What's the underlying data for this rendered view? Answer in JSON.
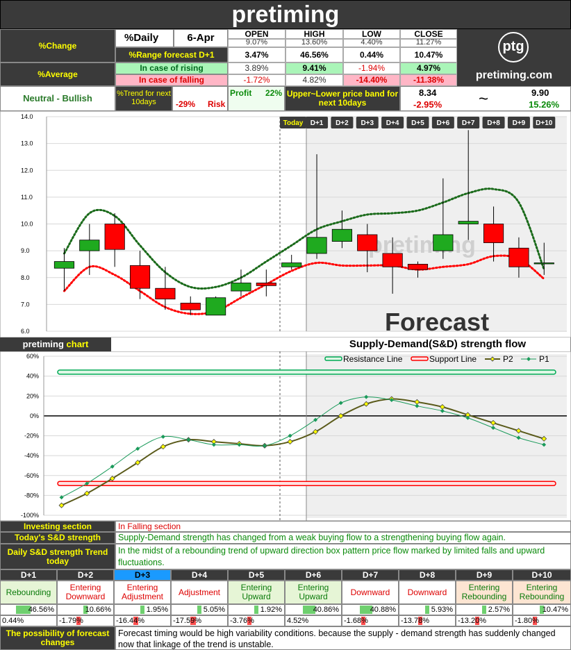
{
  "title": "pretiming",
  "header": {
    "pct_change_label": "%Change",
    "pct_daily_label": "%Daily",
    "date": "6-Apr",
    "cols": [
      "OPEN",
      "HIGH",
      "LOW",
      "CLOSE"
    ],
    "daily_values": [
      "9.07%",
      "13.60%",
      "4.40%",
      "11.27%"
    ],
    "range_label": "%Range forecast D+1",
    "range_values": [
      "3.47%",
      "46.56%",
      "0.44%",
      "10.47%"
    ],
    "pct_average_label": "%Average",
    "rising_label": "In case of rising",
    "rising_values": [
      "3.89%",
      "9.41%",
      "-1.94%",
      "4.97%"
    ],
    "falling_label": "In case of falling",
    "falling_values": [
      "-1.72%",
      "4.82%",
      "-14.40%",
      "-11.38%"
    ],
    "trend_status": "Neutral - Bullish",
    "trend_label": "%Trend for next 10days",
    "risk_value": "-29%",
    "risk_label": "Risk",
    "profit_label": "Profit",
    "profit_value": "22%",
    "band_label": "Upper~Lower price band for next 10days",
    "band_lower_price": "8.34",
    "band_lower_pct": "-2.95%",
    "band_tilde": "~",
    "band_upper_price": "9.90",
    "band_upper_pct": "15.26%",
    "logo_text": "ptg",
    "site": "pretiming.com"
  },
  "colors": {
    "up": "#1faa1f",
    "down": "#ff0000",
    "resistance_line": "#00aa55",
    "support_line": "#ff0000",
    "p1": "#1a9a5a",
    "p2": "#5a5a1a",
    "header_yellow": "#ffff00"
  },
  "chart_data": [
    {
      "type": "candlestick",
      "categories": [
        "",
        "",
        "",
        "",
        "",
        "",
        "",
        "",
        "",
        "Today",
        "D+1",
        "D+2",
        "D+3",
        "D+4",
        "D+5",
        "D+6",
        "D+7",
        "D+8",
        "D+9",
        "D+10"
      ],
      "candles": [
        {
          "open": 8.35,
          "close": 8.6,
          "high": 9.1,
          "low": 7.5
        },
        {
          "open": 9.0,
          "close": 9.4,
          "high": 10.0,
          "low": 8.1
        },
        {
          "open": 10.0,
          "close": 9.05,
          "high": 10.4,
          "low": 8.4
        },
        {
          "open": 8.45,
          "close": 7.6,
          "high": 9.0,
          "low": 7.2
        },
        {
          "open": 7.6,
          "close": 7.2,
          "high": 8.4,
          "low": 6.8
        },
        {
          "open": 7.05,
          "close": 6.8,
          "high": 7.3,
          "low": 6.6
        },
        {
          "open": 6.6,
          "close": 7.25,
          "high": 7.3,
          "low": 6.6
        },
        {
          "open": 7.5,
          "close": 7.8,
          "high": 8.3,
          "low": 7.3
        },
        {
          "open": 7.8,
          "close": 7.7,
          "high": 8.3,
          "low": 7.3
        },
        {
          "open": 8.4,
          "close": 8.55,
          "high": 8.85,
          "low": 8.3
        },
        {
          "open": 8.9,
          "close": 9.5,
          "high": 12.6,
          "low": 8.7
        },
        {
          "open": 9.35,
          "close": 9.8,
          "high": 10.5,
          "low": 9.1
        },
        {
          "open": 9.6,
          "close": 9.0,
          "high": 10.0,
          "low": 8.2
        },
        {
          "open": 8.9,
          "close": 8.4,
          "high": 9.5,
          "low": 7.4
        },
        {
          "open": 8.5,
          "close": 8.3,
          "high": 8.6,
          "low": 8.0
        },
        {
          "open": 9.0,
          "close": 9.6,
          "high": 11.7,
          "low": 8.7
        },
        {
          "open": 10.0,
          "close": 10.1,
          "high": 13.5,
          "low": 9.4
        },
        {
          "open": 10.0,
          "close": 9.3,
          "high": 10.65,
          "low": 8.6
        },
        {
          "open": 9.1,
          "close": 8.4,
          "high": 9.5,
          "low": 8.0
        },
        {
          "open": 8.55,
          "close": 8.55,
          "high": 9.3,
          "low": 8.1
        }
      ],
      "upper_band": [
        8.9,
        10.4,
        10.3,
        9.2,
        8.2,
        7.65,
        7.65,
        8.0,
        8.6,
        9.2,
        9.8,
        10.1,
        10.35,
        10.4,
        10.5,
        10.8,
        11.15,
        11.3,
        10.8,
        8.3
      ],
      "lower_band": [
        7.5,
        8.4,
        8.1,
        7.5,
        6.9,
        6.65,
        6.75,
        7.25,
        7.75,
        8.25,
        8.55,
        8.45,
        8.45,
        8.45,
        8.3,
        8.4,
        8.5,
        8.8,
        8.7,
        7.95
      ],
      "ylim": [
        6.0,
        14.0
      ],
      "yticks": [
        "14.0",
        "13.0",
        "12.0",
        "11.0",
        "10.0",
        "9.0",
        "8.0",
        "7.0",
        "6.0"
      ],
      "watermark": "pretiming",
      "forecast_label": "Forecast"
    },
    {
      "type": "line",
      "title": "Supply-Demand(S&D) strength flow",
      "chart_label_prefix": "pretiming",
      "chart_label_suffix": "chart",
      "series": [
        {
          "name": "Resistance Line",
          "values": [
            44,
            44,
            44,
            44,
            44,
            44,
            44,
            44,
            44,
            44,
            44,
            44,
            44,
            44,
            44,
            44,
            44,
            44,
            44,
            44
          ]
        },
        {
          "name": "Support Line",
          "values": [
            -68,
            -68,
            -68,
            -68,
            -68,
            -68,
            -68,
            -68,
            -68,
            -68,
            -68,
            -68,
            -68,
            -68,
            -68,
            -68,
            -68,
            -68,
            -68,
            -68
          ]
        },
        {
          "name": "P2",
          "values": [
            -90,
            -78,
            -63,
            -47,
            -31,
            -24,
            -26,
            -28,
            -30,
            -26,
            -16,
            0,
            12,
            17,
            14,
            9,
            1,
            -7,
            -15,
            -23
          ]
        },
        {
          "name": "P1",
          "values": [
            -82,
            -68,
            -51,
            -33,
            -21,
            -24,
            -29,
            -29,
            -30,
            -20,
            -4,
            13,
            19,
            16,
            10,
            5,
            -2,
            -12,
            -22,
            -29
          ]
        }
      ],
      "ylim": [
        -100,
        60
      ],
      "yticks": [
        "60%",
        "40%",
        "20%",
        "0%",
        "-20%",
        "-40%",
        "-60%",
        "-80%",
        "-100%"
      ]
    }
  ],
  "info": {
    "investing_label": "Investing section",
    "investing_value": "In Falling section",
    "sd_label": "Today's S&D strength",
    "sd_value": "Supply-Demand strength has changed from a weak buying flow to a strengthening buying flow again.",
    "trend_label": "Daily S&D strength Trend today",
    "trend_value": "In the midst of a rebounding trend of upward direction box pattern price flow marked by limited falls and upward fluctuations."
  },
  "days": [
    {
      "label": "D+1",
      "state": "Rebounding",
      "up": "46.56%",
      "up_level": 0.47,
      "down": "0.44%",
      "down_level": 0.0
    },
    {
      "label": "D+2",
      "state": "Entering Downward",
      "up": "10.66%",
      "up_level": 0.11,
      "down": "-1.79%",
      "down_level": 0.02
    },
    {
      "label": "D+3",
      "state": "Entering Adjustment",
      "up": "1.95%",
      "up_level": 0.02,
      "down": "-16.44%",
      "down_level": 0.16
    },
    {
      "label": "D+4",
      "state": "Adjustment",
      "up": "5.05%",
      "up_level": 0.05,
      "down": "-17.59%",
      "down_level": 0.18
    },
    {
      "label": "D+5",
      "state": "Entering Upward",
      "up": "1.92%",
      "up_level": 0.02,
      "down": "-3.76%",
      "down_level": 0.04
    },
    {
      "label": "D+6",
      "state": "Entering Upward",
      "up": "40.86%",
      "up_level": 0.41,
      "down": "4.52%",
      "down_level": 0.0
    },
    {
      "label": "D+7",
      "state": "Downward",
      "up": "40.88%",
      "up_level": 0.41,
      "down": "-1.68%",
      "down_level": 0.02
    },
    {
      "label": "D+8",
      "state": "Downward",
      "up": "5.93%",
      "up_level": 0.06,
      "down": "-13.78%",
      "down_level": 0.14
    },
    {
      "label": "D+9",
      "state": "Entering Rebounding",
      "up": "2.57%",
      "up_level": 0.03,
      "down": "-13.20%",
      "down_level": 0.13
    },
    {
      "label": "D+10",
      "state": "Entering Rebounding",
      "up": "10.47%",
      "up_level": 0.1,
      "down": "-1.80%",
      "down_level": 0.02
    }
  ],
  "footer": {
    "label": "The possibility of forecast changes",
    "text": "Forecast timing would be high variability conditions. because the supply - demand strength has suddenly changed now that linkage of the trend is unstable."
  }
}
